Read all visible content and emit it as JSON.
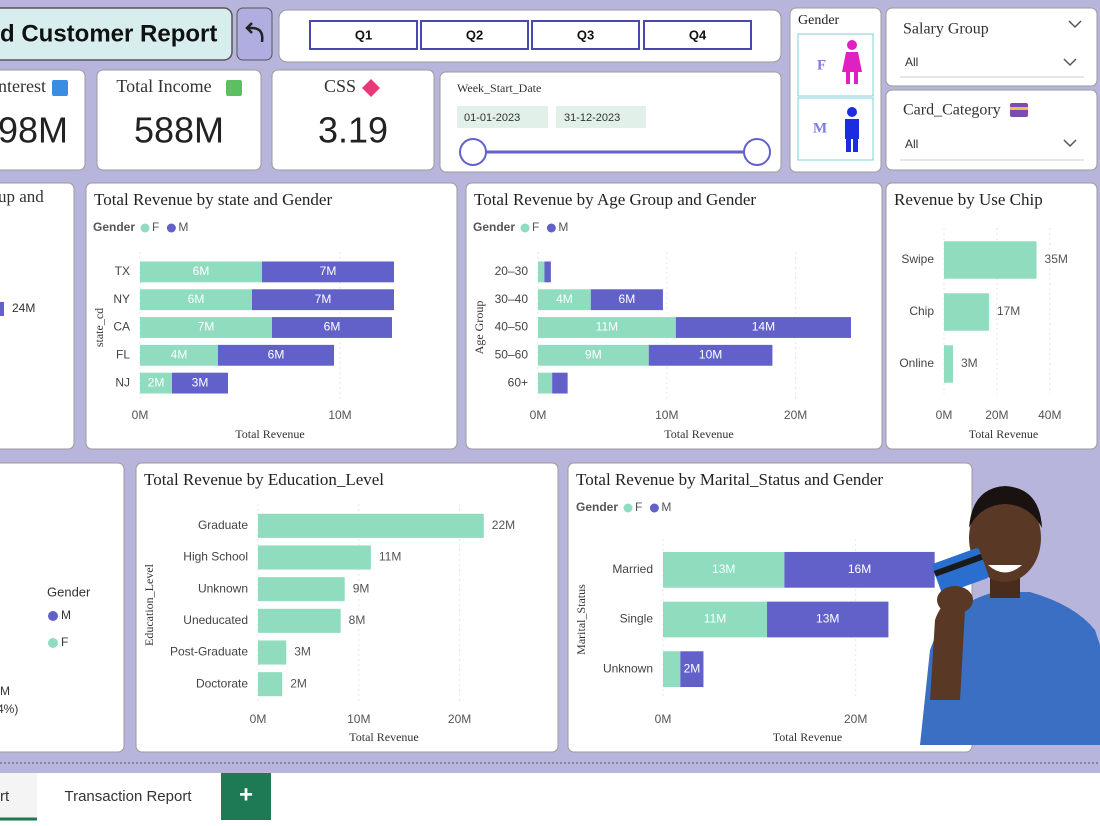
{
  "header": {
    "title": "d Customer Report"
  },
  "quarters": [
    "Q1",
    "Q2",
    "Q3",
    "Q4"
  ],
  "gender_slicer": {
    "title": "Gender",
    "options": [
      "F",
      "M"
    ]
  },
  "salary_slicer": {
    "title": "Salary Group",
    "value": "All"
  },
  "card_slicer": {
    "title": "Card_Category",
    "value": "All"
  },
  "kpis": [
    {
      "label": "nterest",
      "value": "98M"
    },
    {
      "label": "Total Income",
      "value": "588M"
    },
    {
      "label": "CSS",
      "value": "3.19"
    }
  ],
  "date_slicer": {
    "title": "Week_Start_Date",
    "start": "01-01-2023",
    "end": "31-12-2023"
  },
  "partial_left_top": {
    "title": "up and",
    "values": [
      24
    ],
    "value_labels": [
      "24M"
    ],
    "color": "#6161c9"
  },
  "partial_left_bottom": {
    "legend_title": "Gender",
    "legend": [
      "M",
      "F"
    ],
    "labels": [
      "M",
      "4%)"
    ]
  },
  "charts": [
    {
      "type": "bar",
      "title": "Total Revenue by state and Gender",
      "legend_title": "Gender",
      "stacked": true,
      "categories": [
        "TX",
        "NY",
        "CA",
        "FL",
        "NJ"
      ],
      "series": [
        {
          "name": "F",
          "color": "#8fdcbf",
          "values": [
            6.1,
            5.6,
            6.6,
            3.9,
            1.6
          ],
          "value_labels": [
            "6M",
            "6M",
            "7M",
            "4M",
            "2M"
          ]
        },
        {
          "name": "M",
          "color": "#6161c9",
          "values": [
            6.6,
            7.1,
            6.0,
            5.8,
            2.8
          ],
          "value_labels": [
            "7M",
            "7M",
            "6M",
            "6M",
            "3M"
          ]
        }
      ],
      "xlim": [
        0,
        13
      ],
      "xticks": [
        {
          "value": 0,
          "label": "0M"
        },
        {
          "value": 10,
          "label": "10M"
        }
      ],
      "xlabel": "Total Revenue",
      "ylabel": "state_cd",
      "grid": true
    },
    {
      "type": "bar",
      "title": "Total Revenue by Age Group and Gender",
      "legend_title": "Gender",
      "stacked": true,
      "categories": [
        "20–30",
        "30–40",
        "40–50",
        "50–60",
        "60+"
      ],
      "series": [
        {
          "name": "F",
          "color": "#8fdcbf",
          "values": [
            0.5,
            4.1,
            10.7,
            8.6,
            1.1
          ],
          "value_labels": [
            null,
            "4M",
            "11M",
            "9M",
            null
          ]
        },
        {
          "name": "M",
          "color": "#6161c9",
          "values": [
            0.5,
            5.6,
            13.6,
            9.6,
            1.2
          ],
          "value_labels": [
            null,
            "6M",
            "14M",
            "10M",
            null
          ]
        }
      ],
      "xlim": [
        0,
        25
      ],
      "xticks": [
        {
          "value": 0,
          "label": "0M"
        },
        {
          "value": 10,
          "label": "10M"
        },
        {
          "value": 20,
          "label": "20M"
        }
      ],
      "xlabel": "Total Revenue",
      "ylabel": "Age Group",
      "grid": true
    },
    {
      "type": "bar",
      "title": "Revenue by Use Chip",
      "categories": [
        "Swipe",
        "Chip",
        "Online"
      ],
      "values": [
        35,
        17,
        3.4
      ],
      "value_labels": [
        "35M",
        "17M",
        "3M"
      ],
      "color": "#8fdcbf",
      "xlim": [
        0,
        45
      ],
      "xticks": [
        {
          "value": 0,
          "label": "0M"
        },
        {
          "value": 20,
          "label": "20M"
        },
        {
          "value": 40,
          "label": "40M"
        }
      ],
      "xlabel": "Total Revenue",
      "grid": true
    },
    {
      "type": "bar",
      "title": "Total Revenue by Education_Level",
      "categories": [
        "Graduate",
        "High School",
        "Unknown",
        "Uneducated",
        "Post-Graduate",
        "Doctorate"
      ],
      "values": [
        22.4,
        11.2,
        8.6,
        8.2,
        2.8,
        2.4
      ],
      "value_labels": [
        "22M",
        "11M",
        "9M",
        "8M",
        "3M",
        "2M"
      ],
      "color": "#8fdcbf",
      "xlim": [
        0,
        25
      ],
      "xticks": [
        {
          "value": 0,
          "label": "0M"
        },
        {
          "value": 10,
          "label": "10M"
        },
        {
          "value": 20,
          "label": "20M"
        }
      ],
      "xlabel": "Total Revenue",
      "ylabel": "Education_Level",
      "grid": true
    },
    {
      "type": "bar",
      "title": "Total Revenue by Marital_Status and Gender",
      "legend_title": "Gender",
      "stacked": true,
      "categories": [
        "Married",
        "Single",
        "Unknown"
      ],
      "series": [
        {
          "name": "F",
          "color": "#8fdcbf",
          "values": [
            12.6,
            10.8,
            1.8
          ],
          "value_labels": [
            "13M",
            "11M",
            null
          ]
        },
        {
          "name": "M",
          "color": "#6161c9",
          "values": [
            15.6,
            12.6,
            2.4
          ],
          "value_labels": [
            "16M",
            "13M",
            "2M"
          ]
        }
      ],
      "xlim": [
        0,
        30
      ],
      "xticks": [
        {
          "value": 0,
          "label": "0M"
        },
        {
          "value": 20,
          "label": "20M"
        }
      ],
      "xlabel": "Total Revenue",
      "ylabel": "Marital_Status",
      "grid": true
    }
  ],
  "tabs": [
    "rt",
    "Transaction Report",
    "+"
  ]
}
